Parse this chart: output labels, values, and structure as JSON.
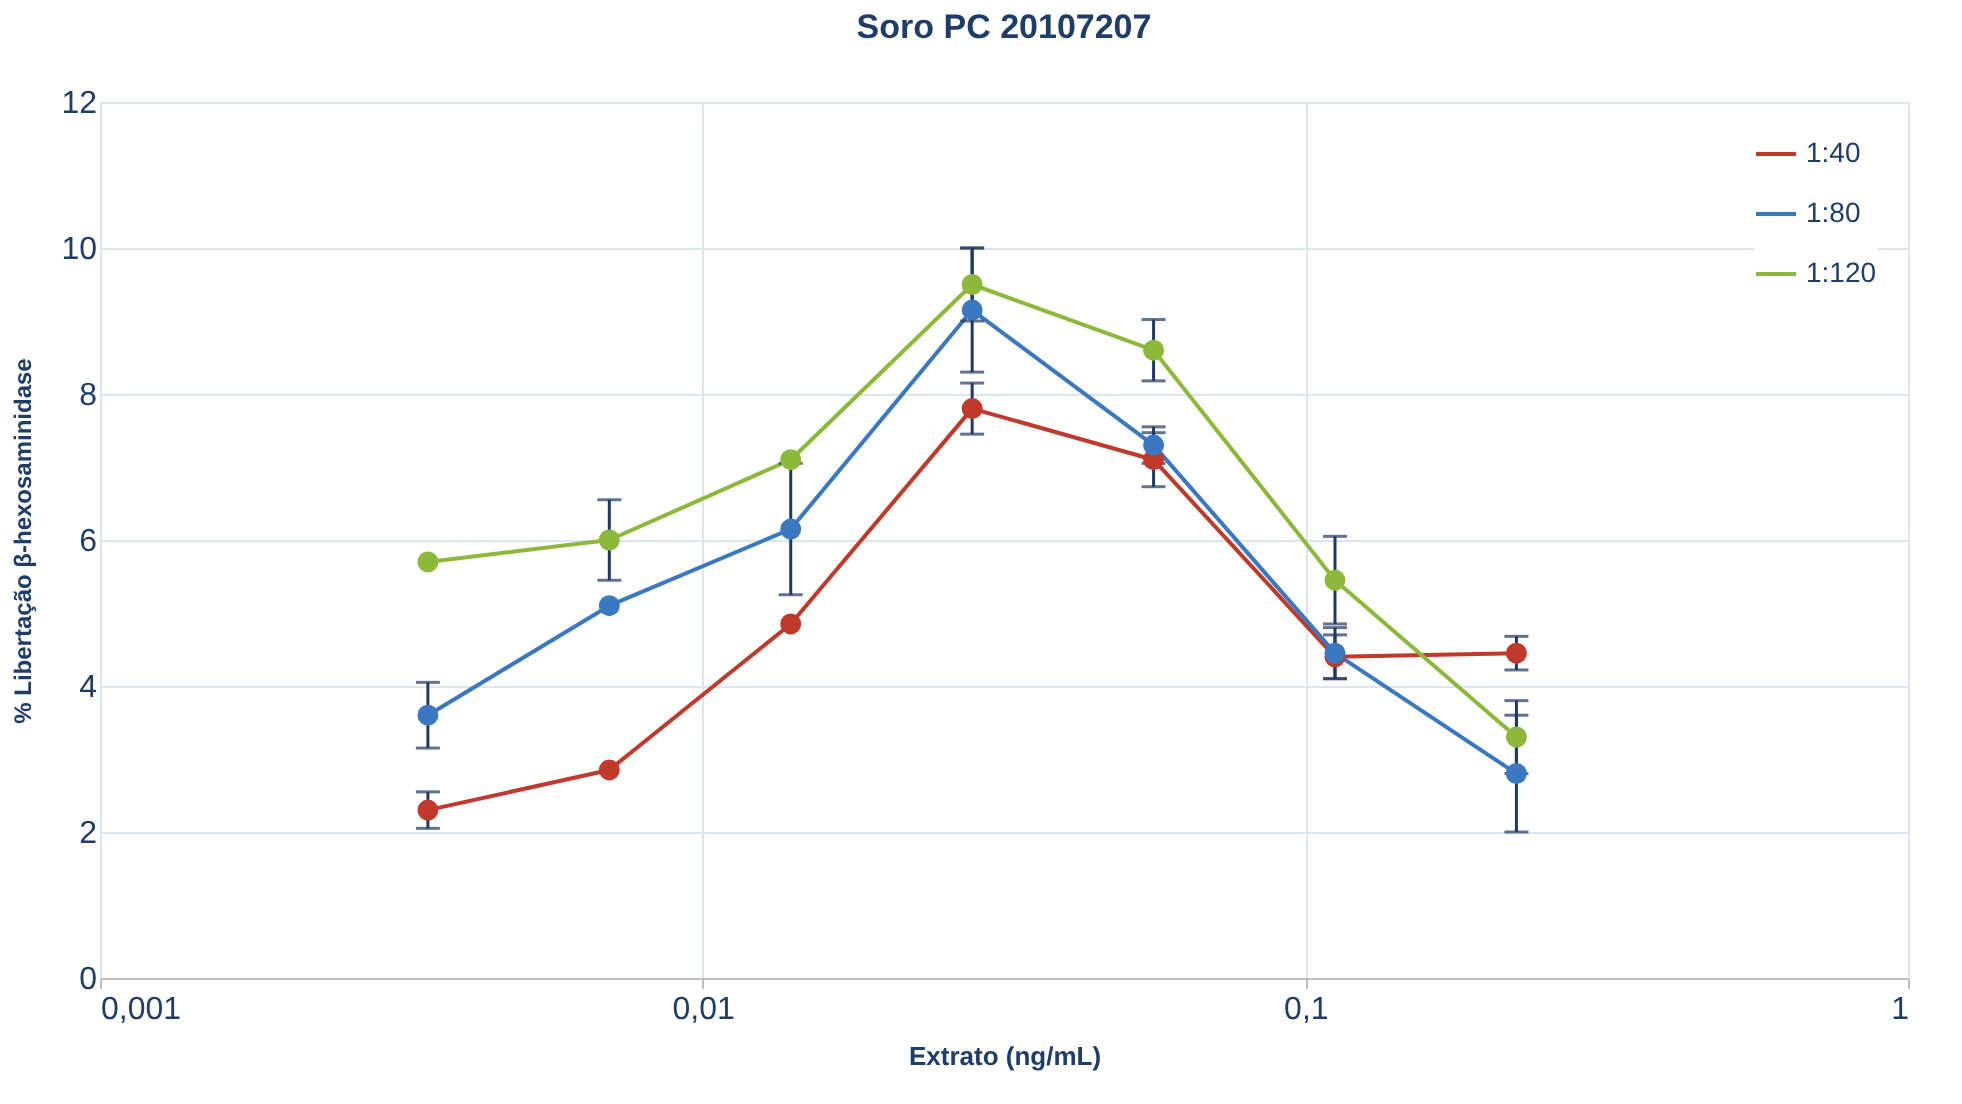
{
  "chart_data": {
    "type": "line",
    "title": "Soro PC 20107207",
    "xlabel": "Extrato (ng/mL)",
    "ylabel": "% Libertação β-hexosaminidase",
    "x": [
      0.0035,
      0.007,
      0.014,
      0.028,
      0.056,
      0.112,
      0.224
    ],
    "series": [
      {
        "name": "1:40",
        "color": "#c0392b",
        "values": [
          2.3,
          2.85,
          4.85,
          7.8,
          7.1,
          4.4,
          4.45
        ],
        "errors": [
          0.25,
          null,
          null,
          0.35,
          0.37,
          0.3,
          0.23
        ]
      },
      {
        "name": "1:80",
        "color": "#3a78c2",
        "values": [
          3.6,
          5.1,
          6.15,
          9.15,
          7.3,
          4.45,
          2.8
        ],
        "errors": [
          0.45,
          null,
          0.9,
          0.85,
          0.25,
          0.35,
          0.8
        ]
      },
      {
        "name": "1:120",
        "color": "#8db93a",
        "values": [
          5.7,
          6.0,
          7.1,
          9.5,
          8.6,
          5.45,
          3.3
        ],
        "errors": [
          null,
          0.55,
          null,
          0.5,
          0.42,
          0.6,
          0.5
        ]
      }
    ],
    "log": "x",
    "xlim": [
      0.001,
      1
    ],
    "xticks": [
      {
        "value": 0.001,
        "label": "0,001"
      },
      {
        "value": 0.01,
        "label": "0,01"
      },
      {
        "value": 0.1,
        "label": "0,1"
      },
      {
        "value": 1,
        "label": "1"
      }
    ],
    "ylim": [
      0,
      12
    ],
    "yticks": [
      0,
      2,
      4,
      6,
      8,
      10,
      12
    ],
    "grid": true,
    "legend": "top right",
    "marker": "circle",
    "line_style": "solid"
  }
}
